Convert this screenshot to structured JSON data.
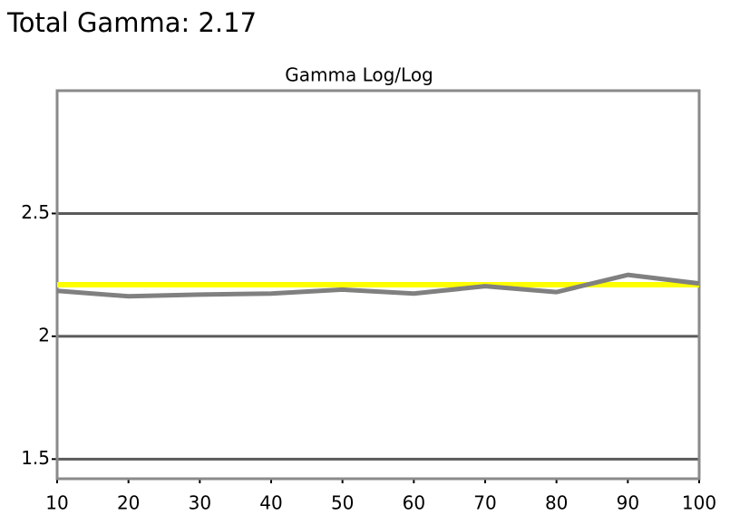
{
  "heading": "Total Gamma: 2.17",
  "chart_data": {
    "type": "line",
    "title": "Gamma Log/Log",
    "x": [
      10,
      20,
      30,
      40,
      50,
      60,
      70,
      80,
      90,
      100
    ],
    "series": [
      {
        "color": "#ffff00",
        "values": [
          2.21,
          2.21,
          2.21,
          2.21,
          2.21,
          2.21,
          2.21,
          2.21,
          2.21,
          2.21
        ]
      },
      {
        "color": "#808080",
        "values": [
          2.185,
          2.163,
          2.17,
          2.174,
          2.19,
          2.174,
          2.204,
          2.18,
          2.25,
          2.215
        ]
      }
    ],
    "xlim": [
      10,
      100
    ],
    "xticks": [
      10,
      20,
      30,
      40,
      50,
      60,
      70,
      80,
      90,
      100
    ],
    "ylim": [
      1.42,
      3
    ],
    "yticks": [
      1.5,
      2,
      2.5
    ],
    "grid": true
  }
}
